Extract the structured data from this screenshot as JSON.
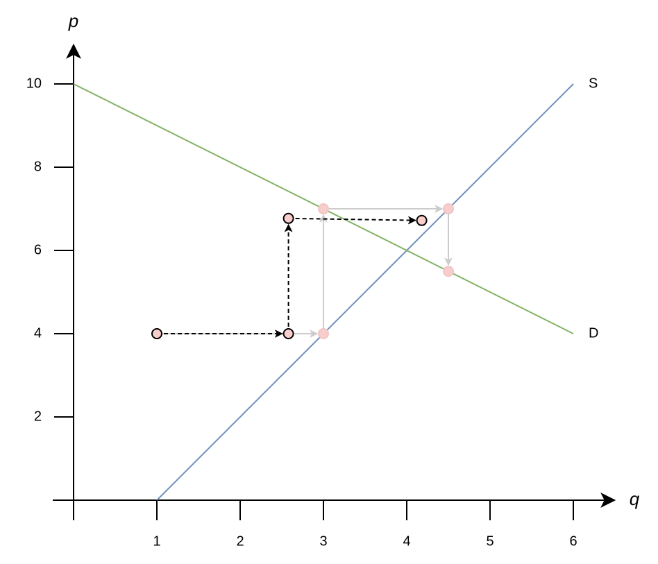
{
  "chart_data": {
    "type": "line",
    "x_label": "q",
    "y_label": "p",
    "xlim": [
      0,
      6.5
    ],
    "ylim": [
      0,
      10.9
    ],
    "xticks": [
      1,
      2,
      3,
      4,
      5,
      6
    ],
    "yticks": [
      2,
      4,
      6,
      8,
      10
    ],
    "series": [
      {
        "name": "S",
        "color": "#6c8ebf",
        "label_color": "#0000b0",
        "x": [
          1,
          6
        ],
        "values": [
          0,
          10
        ]
      },
      {
        "name": "D",
        "color": "#82b366",
        "label_color": "#009900",
        "x": [
          0,
          6
        ],
        "values": [
          10,
          4
        ]
      }
    ],
    "paths": [
      {
        "color": "#cccccc",
        "dashed": false,
        "marker_fill": "#f8cecc",
        "marker_stroke": "#f2c4c4",
        "x": [
          1,
          3,
          3,
          4.5,
          4.5
        ],
        "values": [
          4,
          4,
          7,
          7,
          5.5
        ]
      },
      {
        "color": "#000000",
        "dashed": true,
        "marker_fill": "#f8cecc",
        "marker_stroke": "#000000",
        "x": [
          1,
          2.58,
          2.58,
          4.18
        ],
        "values": [
          4,
          4,
          6.77,
          6.72
        ]
      }
    ]
  }
}
